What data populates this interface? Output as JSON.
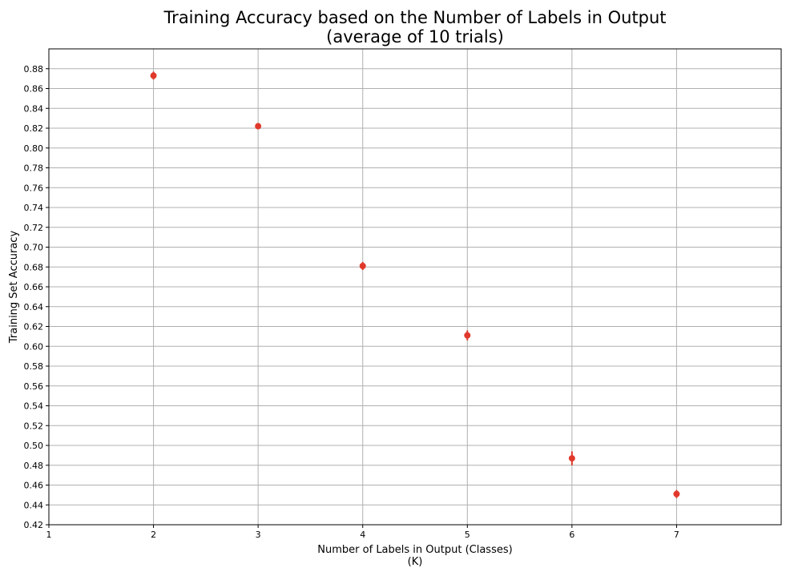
{
  "chart_data": {
    "type": "scatter",
    "title": "Training Accuracy based on the Number of Labels in Output",
    "subtitle": "(average of 10 trials)",
    "xlabel": "Number of Labels in Output (Classes)",
    "xlabel_line2": "(K)",
    "ylabel": "Training Set Accuracy",
    "xlim": [
      1,
      8
    ],
    "ylim": [
      0.42,
      0.9
    ],
    "x_ticks": [
      1,
      2,
      3,
      4,
      5,
      6,
      7
    ],
    "y_ticks": [
      0.42,
      0.44,
      0.46,
      0.48,
      0.5,
      0.52,
      0.54,
      0.56,
      0.58,
      0.6,
      0.62,
      0.64,
      0.66,
      0.68,
      0.7,
      0.72,
      0.74,
      0.76,
      0.78,
      0.8,
      0.82,
      0.84,
      0.86,
      0.88
    ],
    "grid": true,
    "marker_color": "#e0392b",
    "points": [
      {
        "x": 2,
        "y": 0.873,
        "err": 0.004
      },
      {
        "x": 3,
        "y": 0.822,
        "err": 0.003
      },
      {
        "x": 4,
        "y": 0.681,
        "err": 0.004
      },
      {
        "x": 5,
        "y": 0.611,
        "err": 0.005
      },
      {
        "x": 6,
        "y": 0.487,
        "err": 0.007
      },
      {
        "x": 7,
        "y": 0.451,
        "err": 0.004
      }
    ]
  }
}
